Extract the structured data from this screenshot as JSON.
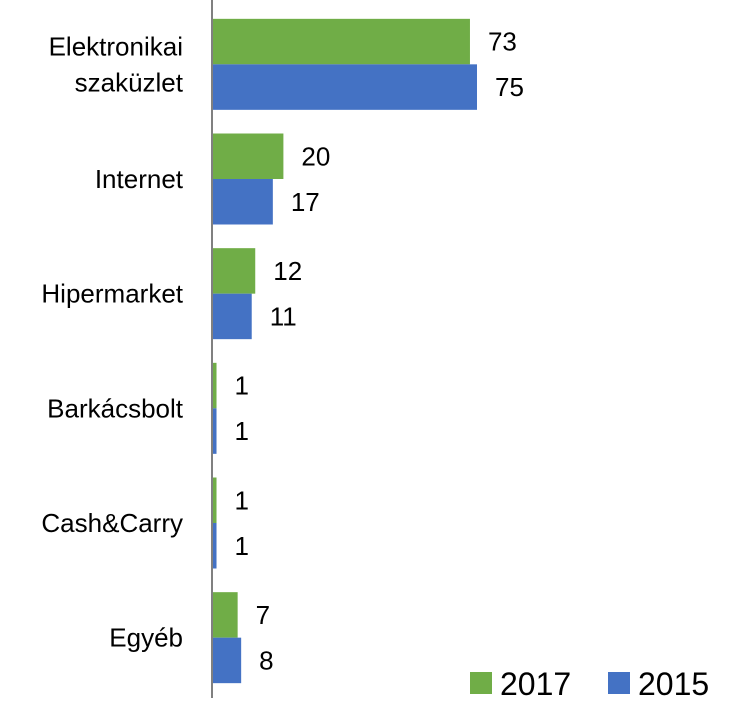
{
  "chart_data": {
    "type": "bar",
    "orientation": "horizontal",
    "title": "",
    "xlabel": "",
    "ylabel": "",
    "categories": [
      [
        "Elektronikai",
        "szaküzlet"
      ],
      [
        "Internet"
      ],
      [
        "Hipermarket"
      ],
      [
        "Barkácsbolt"
      ],
      [
        "Cash&Carry"
      ],
      [
        "Egyéb"
      ]
    ],
    "series": [
      {
        "name": "2017",
        "color": "#70AD47",
        "values": [
          73,
          20,
          12,
          1,
          1,
          7
        ]
      },
      {
        "name": "2015",
        "color": "#4472C4",
        "values": [
          75,
          17,
          11,
          1,
          1,
          8
        ]
      }
    ],
    "xlim": [
      0,
      100
    ],
    "grid": false,
    "data_labels": true,
    "legend": {
      "position": "bottom-right"
    }
  }
}
